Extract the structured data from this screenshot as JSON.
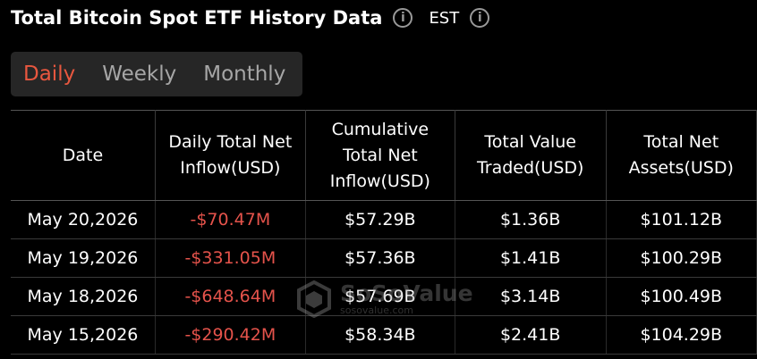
{
  "header": {
    "title": "Total Bitcoin Spot ETF History Data",
    "timezone": "EST"
  },
  "tabs": [
    {
      "label": "Daily",
      "active": true
    },
    {
      "label": "Weekly",
      "active": false
    },
    {
      "label": "Monthly",
      "active": false
    }
  ],
  "table": {
    "columns": [
      [
        "Date"
      ],
      [
        "Daily Total Net",
        "Inflow(USD)"
      ],
      [
        "Cumulative",
        "Total Net",
        "Inflow(USD)"
      ],
      [
        "Total Value",
        "Traded(USD)"
      ],
      [
        "Total Net",
        "Assets(USD)"
      ]
    ],
    "rows": [
      [
        "May 20,2026",
        "-$70.47M",
        "$57.29B",
        "$1.36B",
        "$101.12B"
      ],
      [
        "May 19,2026",
        "-$331.05M",
        "$57.36B",
        "$1.41B",
        "$100.29B"
      ],
      [
        "May 18,2026",
        "-$648.64M",
        "$57.69B",
        "$3.14B",
        "$100.49B"
      ],
      [
        "May 15,2026",
        "-$290.42M",
        "$58.34B",
        "$2.41B",
        "$104.29B"
      ]
    ]
  },
  "watermark": {
    "brand": "SoSoValue",
    "site": "sosovalue.com"
  }
}
